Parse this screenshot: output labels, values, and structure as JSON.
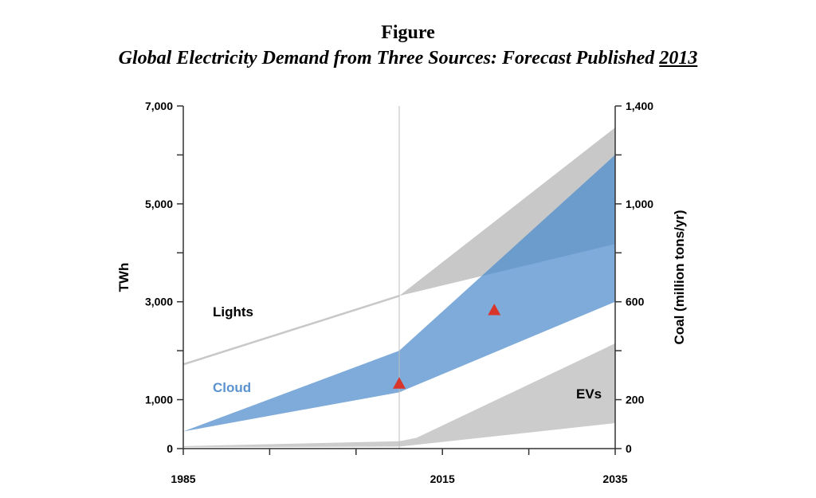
{
  "header": {
    "title": "Figure",
    "subtitle_prefix": "Global Electricity Demand from Three Sources: Forecast Published ",
    "subtitle_year": "2013"
  },
  "chart_data": {
    "type": "area",
    "title": "Global Electricity Demand from Three Sources: Forecast Published 2013",
    "ylabel": "TWh",
    "y2label": "Coal (million tons/yr)",
    "xlim": [
      1985,
      2035
    ],
    "ylim": [
      0,
      7000
    ],
    "y2lim": [
      0,
      1400
    ],
    "x_ticks": [
      1985,
      1995,
      2005,
      2015,
      2025,
      2035
    ],
    "x_tick_labels": [
      "1985",
      "",
      "",
      "2015",
      "",
      "2035"
    ],
    "y_ticks": [
      0,
      1000,
      2000,
      3000,
      4000,
      5000,
      6000,
      7000
    ],
    "y_tick_labels": [
      "0",
      "1,000",
      "",
      "3,000",
      "",
      "5,000",
      "",
      "7,000"
    ],
    "y2_ticks": [
      0,
      200,
      400,
      600,
      800,
      1000,
      1200,
      1400
    ],
    "y2_tick_labels": [
      "0",
      "200",
      "",
      "600",
      "",
      "1,000",
      "",
      "1,400"
    ],
    "forecast_start_x": 2010,
    "grid": false,
    "series": [
      {
        "name": "Lights",
        "color": "#c8c8c8",
        "line": [
          [
            1985,
            1720
          ],
          [
            2010,
            3120
          ]
        ],
        "upper": [
          [
            2010,
            3120
          ],
          [
            2035,
            6560
          ]
        ],
        "lower": [
          [
            2010,
            3120
          ],
          [
            2035,
            4180
          ]
        ]
      },
      {
        "name": "Cloud",
        "color": "#7eabd9",
        "overlap_color": "#6b9ccc",
        "upper": [
          [
            1985,
            350
          ],
          [
            2010,
            2000
          ],
          [
            2035,
            6000
          ]
        ],
        "lower": [
          [
            1985,
            350
          ],
          [
            2010,
            1150
          ],
          [
            2035,
            3000
          ]
        ]
      },
      {
        "name": "EVs",
        "color": "#cccccc",
        "upper": [
          [
            1985,
            50
          ],
          [
            2010,
            150
          ],
          [
            2012,
            220
          ],
          [
            2035,
            2150
          ]
        ],
        "lower": [
          [
            1985,
            30
          ],
          [
            2010,
            40
          ],
          [
            2035,
            520
          ]
        ]
      }
    ],
    "markers": [
      {
        "x": 2010,
        "y": 1330,
        "color": "#d9352a",
        "shape": "triangle"
      },
      {
        "x": 2021,
        "y": 2830,
        "color": "#d9352a",
        "shape": "triangle"
      }
    ]
  }
}
